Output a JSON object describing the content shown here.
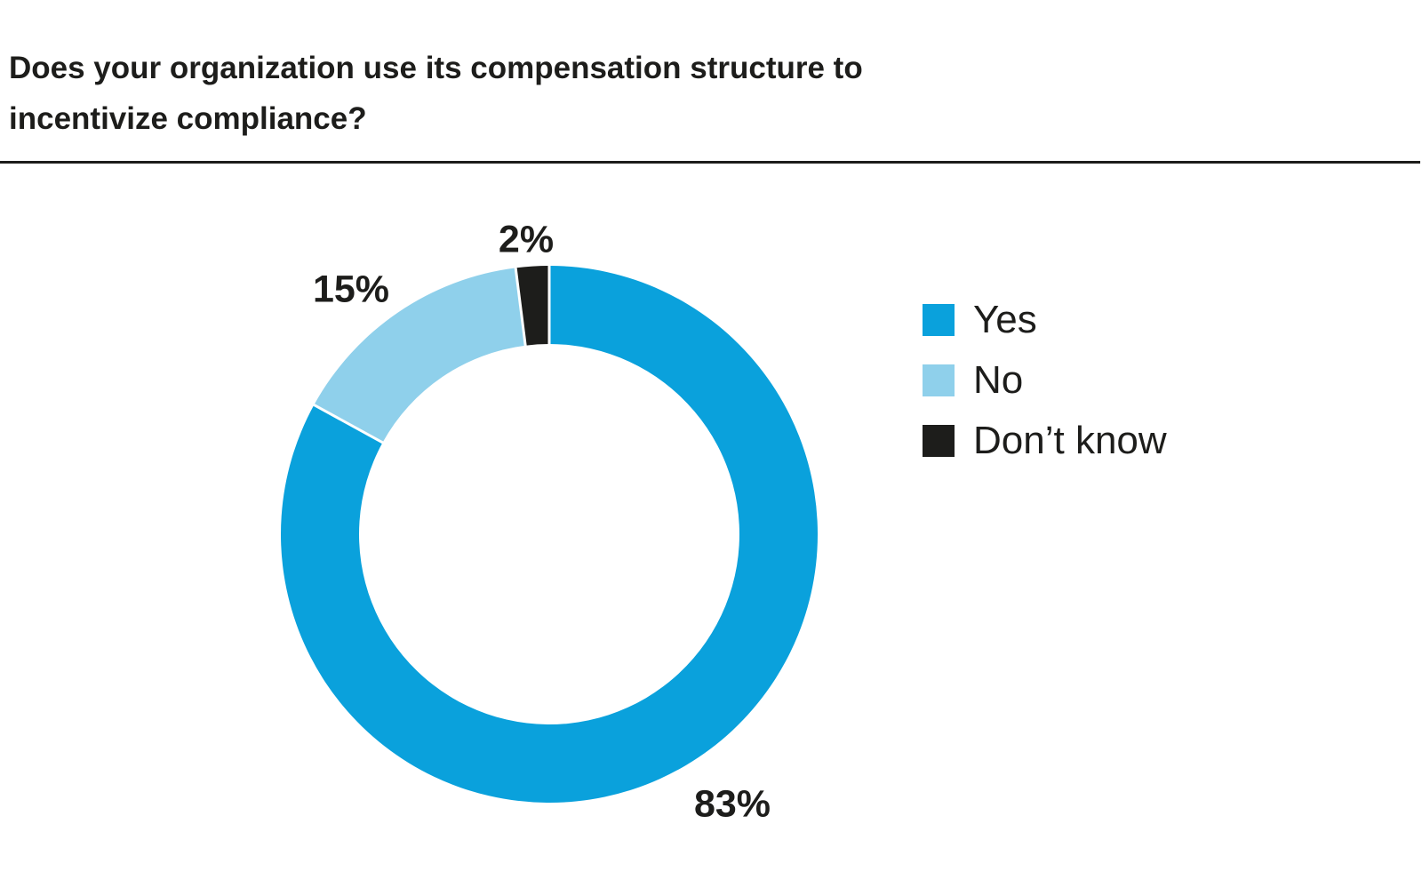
{
  "title": {
    "line1": "Does your organization use its compensation structure to",
    "line2": "incentivize compliance?"
  },
  "chart_data": {
    "type": "pie",
    "variant": "donut",
    "title": "Does your organization use its compensation structure to incentivize compliance?",
    "categories": [
      "Yes",
      "No",
      "Don't know"
    ],
    "values": [
      83,
      15,
      2
    ],
    "unit": "%",
    "start_angle": "12 o'clock",
    "direction": "clockwise",
    "hole_ratio": 0.71,
    "legend_position": "right",
    "separator_color": "#ffffff",
    "slices": [
      {
        "id": "yes",
        "name": "Yes",
        "value": 83,
        "label": "83%",
        "color": "#0aa1dc"
      },
      {
        "id": "no",
        "name": "No",
        "value": 15,
        "label": "15%",
        "color": "#8fd0eb"
      },
      {
        "id": "dont-know",
        "name": "Don’t know",
        "value": 2,
        "label": "2%",
        "color": "#1d1d1b"
      }
    ]
  },
  "colors": {
    "text": "#1d1d1b",
    "rule": "#1d1d1b",
    "background": "#ffffff"
  }
}
